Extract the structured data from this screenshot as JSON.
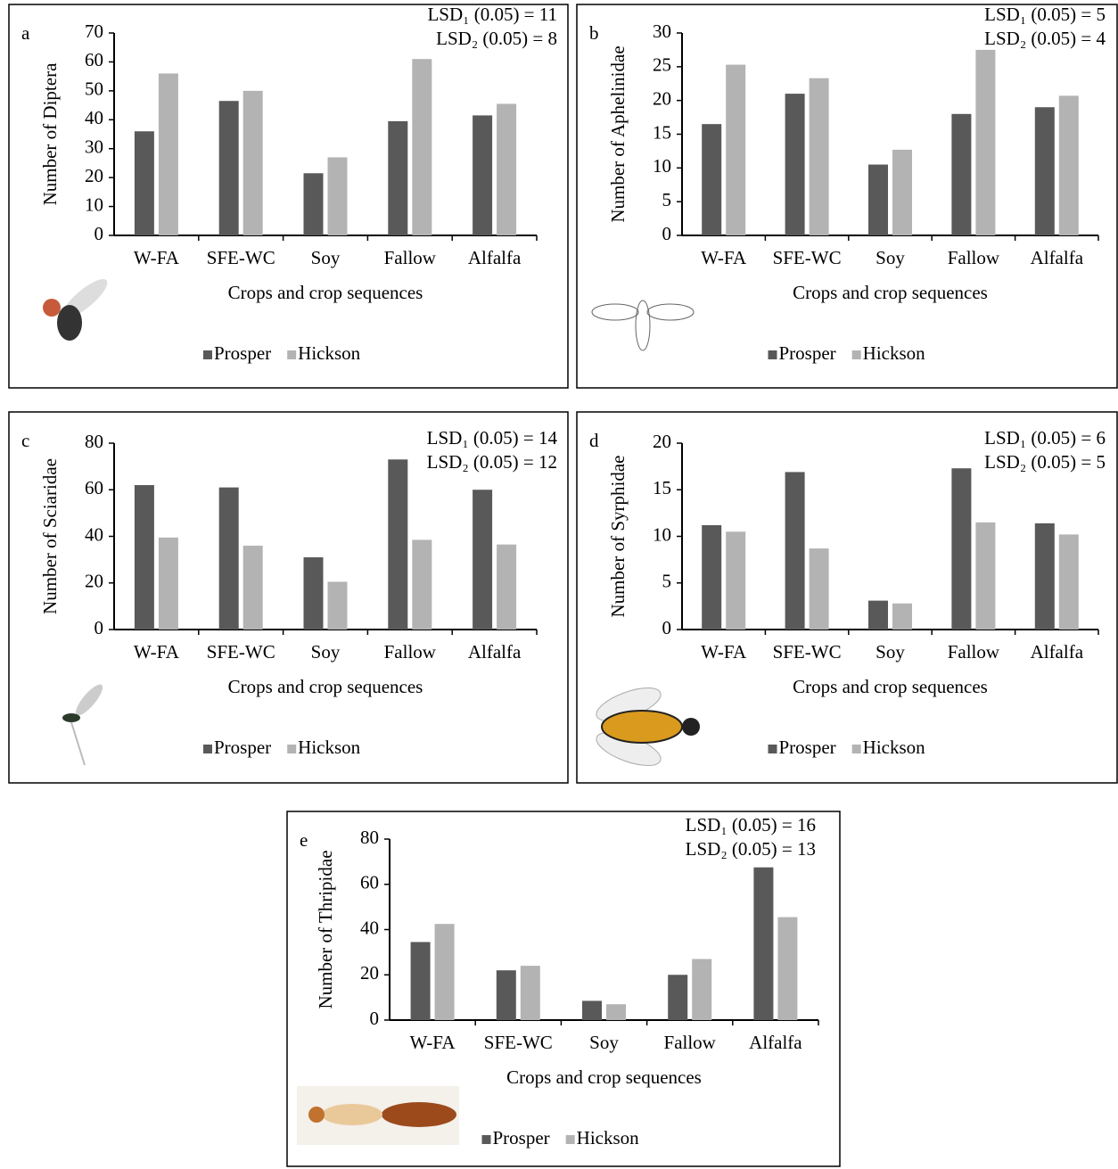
{
  "chart_data": [
    {
      "type": "bar",
      "panel_label": "a",
      "annotations": [
        "LSD₁ (0.05) = 11",
        "LSD₂ (0.05) = 8"
      ],
      "y_label": "Number of Diptera",
      "x_label": "Crops and crop sequences",
      "categories": [
        "W-FA",
        "SFE-WC",
        "Soy",
        "Fallow",
        "Alfalfa"
      ],
      "series": [
        {
          "name": "Prosper",
          "color": "#595959",
          "values": [
            36,
            46.5,
            21.5,
            39.5,
            41.5
          ]
        },
        {
          "name": "Hickson",
          "color": "#b3b3b3",
          "values": [
            56,
            50,
            27,
            61,
            45.5
          ]
        }
      ],
      "ylim": [
        0,
        70
      ],
      "yticks": [
        0,
        10,
        20,
        30,
        40,
        50,
        60,
        70
      ]
    },
    {
      "type": "bar",
      "panel_label": "b",
      "annotations": [
        "LSD₁ (0.05) = 5",
        "LSD₂ (0.05) = 4"
      ],
      "y_label": "Number of Aphelinidae",
      "x_label": "Crops and crop sequences",
      "categories": [
        "W-FA",
        "SFE-WC",
        "Soy",
        "Fallow",
        "Alfalfa"
      ],
      "series": [
        {
          "name": "Prosper",
          "color": "#595959",
          "values": [
            16.5,
            21,
            10.5,
            18,
            19
          ]
        },
        {
          "name": "Hickson",
          "color": "#b3b3b3",
          "values": [
            25.3,
            23.3,
            12.7,
            27.5,
            20.7
          ]
        }
      ],
      "ylim": [
        0,
        30
      ],
      "yticks": [
        0,
        5,
        10,
        15,
        20,
        25,
        30
      ]
    },
    {
      "type": "bar",
      "panel_label": "c",
      "annotations": [
        "LSD₁ (0.05) = 14",
        "LSD₂ (0.05) = 12"
      ],
      "y_label": "Number of Sciaridae",
      "x_label": "Crops and crop sequences",
      "categories": [
        "W-FA",
        "SFE-WC",
        "Soy",
        "Fallow",
        "Alfalfa"
      ],
      "series": [
        {
          "name": "Prosper",
          "color": "#595959",
          "values": [
            62,
            61,
            31,
            73,
            60
          ]
        },
        {
          "name": "Hickson",
          "color": "#b3b3b3",
          "values": [
            39.5,
            36,
            20.5,
            38.5,
            36.5
          ]
        }
      ],
      "ylim": [
        0,
        80
      ],
      "yticks": [
        0,
        20,
        40,
        60,
        80
      ]
    },
    {
      "type": "bar",
      "panel_label": "d",
      "annotations": [
        "LSD₁ (0.05) = 6",
        "LSD₂ (0.05) = 5"
      ],
      "y_label": "Number of Syrphidae",
      "x_label": "Crops and crop sequences",
      "categories": [
        "W-FA",
        "SFE-WC",
        "Soy",
        "Fallow",
        "Alfalfa"
      ],
      "series": [
        {
          "name": "Prosper",
          "color": "#595959",
          "values": [
            11.2,
            16.9,
            3.1,
            17.3,
            11.4
          ]
        },
        {
          "name": "Hickson",
          "color": "#b3b3b3",
          "values": [
            10.5,
            8.7,
            2.8,
            11.5,
            10.2
          ]
        }
      ],
      "ylim": [
        0,
        20
      ],
      "yticks": [
        0,
        5,
        10,
        15,
        20
      ]
    },
    {
      "type": "bar",
      "panel_label": "e",
      "annotations": [
        "LSD₁ (0.05) = 16",
        "LSD₂ (0.05) = 13"
      ],
      "y_label": "Number of Thripidae",
      "x_label": "Crops and crop sequences",
      "categories": [
        "W-FA",
        "SFE-WC",
        "Soy",
        "Fallow",
        "Alfalfa"
      ],
      "series": [
        {
          "name": "Prosper",
          "color": "#595959",
          "values": [
            34.5,
            22,
            8.5,
            20,
            67.5
          ]
        },
        {
          "name": "Hickson",
          "color": "#b3b3b3",
          "values": [
            42.5,
            24,
            7,
            27,
            45.5
          ]
        }
      ],
      "ylim": [
        0,
        80
      ],
      "yticks": [
        0,
        20,
        40,
        60,
        80
      ]
    }
  ]
}
